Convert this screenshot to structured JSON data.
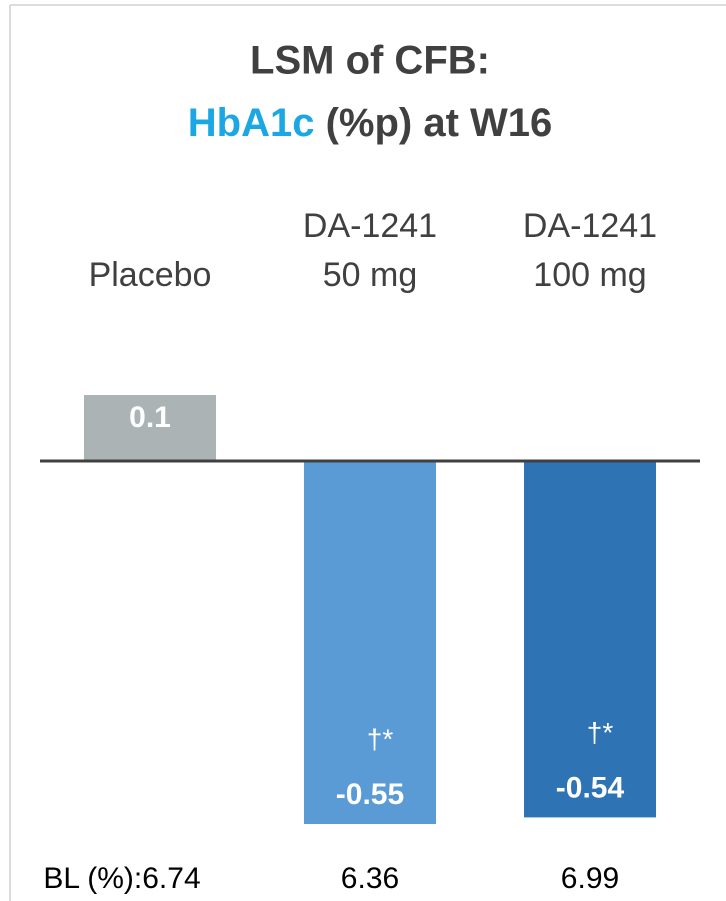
{
  "chart_data": {
    "type": "bar",
    "title_line1": "LSM of CFB:",
    "title_highlight": "HbA1c",
    "title_rest": " (%p) at W16",
    "categories": [
      [
        "Placebo"
      ],
      [
        "DA-1241",
        "50 mg"
      ],
      [
        "DA-1241",
        "100 mg"
      ]
    ],
    "values": [
      0.1,
      -0.55,
      -0.54
    ],
    "colors": [
      "#abb3b4",
      "#5b9bd5",
      "#2e74b5"
    ],
    "annotations": [
      null,
      "†*",
      "†*"
    ],
    "baseline_label": "BL (%):",
    "baseline": [
      6.74,
      6.36,
      6.99
    ]
  }
}
